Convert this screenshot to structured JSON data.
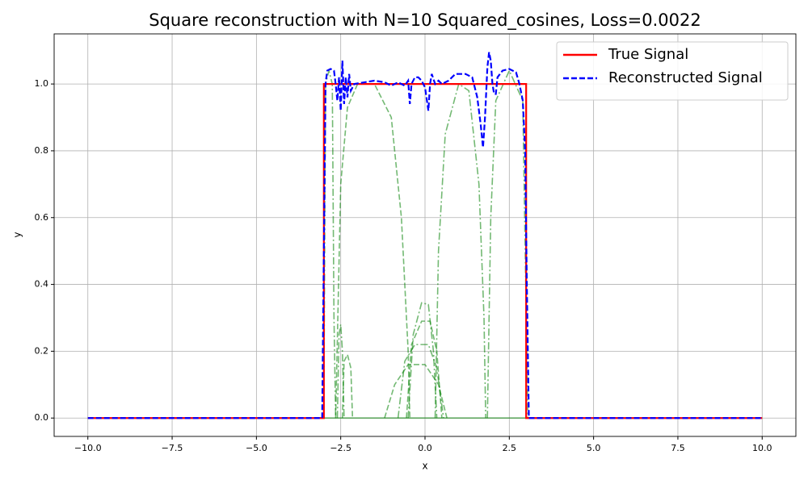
{
  "chart_data": {
    "type": "line",
    "title": "Square reconstruction with N=10 Squared_cosines, Loss=0.0022",
    "x_label": "x",
    "y_label": "y",
    "xlim": [
      -11,
      11
    ],
    "ylim": [
      -0.055,
      1.15
    ],
    "xticks": [
      {
        "value": -10,
        "label": "−10.0"
      },
      {
        "value": -7.5,
        "label": "−7.5"
      },
      {
        "value": -5,
        "label": "−5.0"
      },
      {
        "value": -2.5,
        "label": "−2.5"
      },
      {
        "value": 0,
        "label": "0.0"
      },
      {
        "value": 2.5,
        "label": "2.5"
      },
      {
        "value": 5,
        "label": "5.0"
      },
      {
        "value": 7.5,
        "label": "7.5"
      },
      {
        "value": 10,
        "label": "10.0"
      }
    ],
    "yticks": [
      {
        "value": 0,
        "label": "0.0"
      },
      {
        "value": 0.2,
        "label": "0.2"
      },
      {
        "value": 0.4,
        "label": "0.4"
      },
      {
        "value": 0.6,
        "label": "0.6"
      },
      {
        "value": 0.8,
        "label": "0.8"
      },
      {
        "value": 1,
        "label": "1.0"
      }
    ],
    "grid": true,
    "legend": "upper right",
    "series": [
      {
        "color": "#008000",
        "alpha": 0.55,
        "linestyle": "solid",
        "x": [
          -10,
          10
        ],
        "values": [
          0,
          0
        ]
      },
      {
        "color": "#008000",
        "alpha": 0.55,
        "linestyle": "dashdot",
        "x": [
          -3.0,
          -2.95,
          -2.85,
          -2.75,
          -2.7,
          -2.65
        ],
        "values": [
          0,
          1.0,
          1.04,
          1.0,
          0.3,
          0
        ]
      },
      {
        "color": "#008000",
        "alpha": 0.55,
        "linestyle": "dashed",
        "x": [
          -2.65,
          -2.5,
          -2.3,
          -2.0,
          -1.5,
          -1.0,
          -0.7,
          -0.5,
          -0.45
        ],
        "values": [
          0,
          0.7,
          0.93,
          1.0,
          1.0,
          0.9,
          0.6,
          0.2,
          0
        ]
      },
      {
        "color": "#008000",
        "alpha": 0.55,
        "linestyle": "dashdot",
        "x": [
          0.3,
          0.4,
          0.6,
          1.0,
          1.3,
          1.6,
          1.75,
          1.8
        ],
        "values": [
          0,
          0.5,
          0.85,
          1.0,
          0.98,
          0.7,
          0.3,
          0
        ]
      },
      {
        "color": "#008000",
        "alpha": 0.55,
        "linestyle": "dashdot",
        "x": [
          1.85,
          1.95,
          2.1,
          2.5,
          2.9,
          3.05
        ],
        "values": [
          0,
          0.6,
          0.95,
          1.04,
          0.95,
          0
        ]
      },
      {
        "color": "#008000",
        "alpha": 0.55,
        "linestyle": "dashdot",
        "x": [
          -2.6,
          -2.55,
          -2.5,
          -2.45,
          -2.4
        ],
        "values": [
          0,
          0.25,
          0.28,
          0.2,
          0
        ]
      },
      {
        "color": "#008000",
        "alpha": 0.55,
        "linestyle": "dashed",
        "x": [
          -2.45,
          -2.4,
          -2.3,
          -2.2,
          -2.15
        ],
        "values": [
          0,
          0.17,
          0.19,
          0.15,
          0
        ]
      },
      {
        "color": "#008000",
        "alpha": 0.55,
        "linestyle": "dashdot",
        "x": [
          -0.5,
          -0.35,
          -0.1,
          0.1,
          0.25,
          0.35
        ],
        "values": [
          0,
          0.25,
          0.345,
          0.34,
          0.2,
          0
        ]
      },
      {
        "color": "#008000",
        "alpha": 0.55,
        "linestyle": "dashed",
        "x": [
          -0.55,
          -0.4,
          -0.1,
          0.15,
          0.35,
          0.5
        ],
        "values": [
          0,
          0.22,
          0.29,
          0.29,
          0.2,
          0
        ]
      },
      {
        "color": "#008000",
        "alpha": 0.55,
        "linestyle": "dashdot",
        "x": [
          -0.8,
          -0.6,
          -0.3,
          0.1,
          0.35,
          0.55
        ],
        "values": [
          0,
          0.17,
          0.22,
          0.22,
          0.15,
          0
        ]
      },
      {
        "color": "#008000",
        "alpha": 0.55,
        "linestyle": "dashed",
        "x": [
          -1.2,
          -0.9,
          -0.5,
          0.0,
          0.4,
          0.65
        ],
        "values": [
          0,
          0.1,
          0.16,
          0.16,
          0.1,
          0
        ]
      },
      {
        "name": "True Signal",
        "color": "#ff0000",
        "alpha": 1,
        "linestyle": "solid",
        "x": [
          -10,
          -3,
          -3,
          3,
          3,
          10
        ],
        "values": [
          0,
          0,
          1,
          1,
          0,
          0
        ]
      },
      {
        "name": "Reconstructed Signal",
        "color": "#0000ff",
        "alpha": 1,
        "linestyle": "dashed",
        "x": [
          -10,
          -3.05,
          -3.0,
          -2.95,
          -2.9,
          -2.8,
          -2.7,
          -2.65,
          -2.6,
          -2.55,
          -2.5,
          -2.45,
          -2.4,
          -2.35,
          -2.3,
          -2.25,
          -2.2,
          -2.1,
          -1.8,
          -1.5,
          -1.2,
          -1.0,
          -0.8,
          -0.6,
          -0.5,
          -0.45,
          -0.4,
          -0.3,
          -0.2,
          -0.1,
          0.0,
          0.1,
          0.15,
          0.2,
          0.3,
          0.4,
          0.5,
          0.7,
          0.9,
          1.2,
          1.4,
          1.55,
          1.65,
          1.72,
          1.78,
          1.85,
          1.9,
          1.95,
          2.0,
          2.05,
          2.1,
          2.15,
          2.3,
          2.5,
          2.7,
          2.8,
          2.9,
          2.97,
          3.02,
          3.08,
          10
        ],
        "values": [
          0,
          0,
          0.5,
          1.0,
          1.04,
          1.045,
          1.04,
          1.0,
          0.95,
          1.02,
          0.92,
          1.07,
          0.94,
          1.02,
          0.96,
          1.03,
          0.98,
          1.0,
          1.005,
          1.01,
          1.005,
          0.995,
          1.005,
          0.995,
          1.01,
          0.94,
          1.0,
          1.02,
          1.02,
          1.01,
          0.99,
          0.92,
          1.0,
          1.03,
          1.0,
          1.01,
          1.0,
          1.01,
          1.03,
          1.03,
          1.02,
          0.96,
          0.88,
          0.81,
          0.9,
          1.05,
          1.095,
          1.07,
          1.0,
          0.97,
          0.97,
          1.02,
          1.04,
          1.045,
          1.035,
          1.0,
          0.95,
          0.8,
          0.4,
          0,
          0
        ]
      }
    ]
  }
}
